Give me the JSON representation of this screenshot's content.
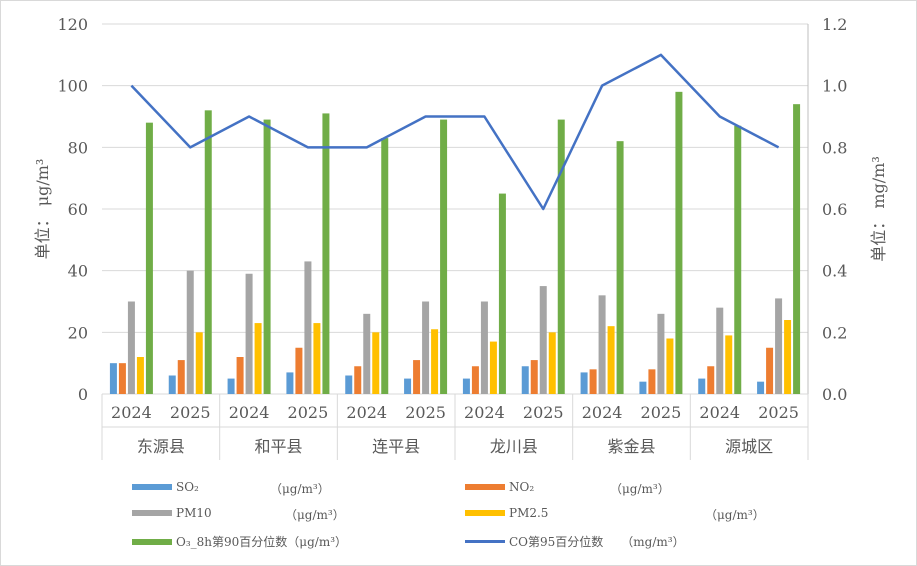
{
  "chart_data": {
    "type": "bar+line",
    "groups": [
      "东源县",
      "和平县",
      "连平县",
      "龙川县",
      "紫金县",
      "源城区"
    ],
    "years": [
      "2024",
      "2025"
    ],
    "ylabel": "单位： μg/m³",
    "y2label": "单位： mg/m³",
    "ylim": [
      0,
      120
    ],
    "yticks": [
      "0",
      "20",
      "40",
      "60",
      "80",
      "100",
      "120"
    ],
    "y2lim": [
      0,
      1.2
    ],
    "y2ticks": [
      "0.0",
      "0.2",
      "0.4",
      "0.6",
      "0.8",
      "1.0",
      "1.2"
    ],
    "grid": true,
    "legend_position": "bottom",
    "series": [
      {
        "name": "SO₂",
        "unit": "（μg/m³）",
        "type": "bar",
        "color": "#5b9bd5",
        "values": [
          10,
          6,
          5,
          7,
          6,
          5,
          5,
          9,
          7,
          4,
          5,
          4
        ]
      },
      {
        "name": "NO₂",
        "unit": "（μg/m³）",
        "type": "bar",
        "color": "#ed7d31",
        "values": [
          10,
          11,
          12,
          15,
          9,
          11,
          9,
          11,
          8,
          8,
          9,
          15
        ]
      },
      {
        "name": "PM10",
        "unit": "（μg/m³）",
        "type": "bar",
        "color": "#a5a5a5",
        "values": [
          30,
          40,
          39,
          43,
          26,
          30,
          30,
          35,
          32,
          26,
          28,
          31
        ]
      },
      {
        "name": "PM2.5",
        "unit": "（μg/m³）",
        "type": "bar",
        "color": "#ffc000",
        "values": [
          12,
          20,
          23,
          23,
          20,
          21,
          17,
          20,
          22,
          18,
          19,
          24
        ]
      },
      {
        "name": "O₃_8h第90百分位数",
        "unit": "（μg/m³）",
        "type": "bar",
        "color": "#70ad47",
        "values": [
          88,
          92,
          89,
          91,
          83,
          89,
          65,
          89,
          82,
          98,
          87,
          94
        ]
      },
      {
        "name": "CO第95百分位数",
        "unit": "（mg/m³）",
        "type": "line",
        "axis": "right",
        "color": "#4472c4",
        "values": [
          1.0,
          0.8,
          0.9,
          0.8,
          0.8,
          0.9,
          0.9,
          0.6,
          1.0,
          1.1,
          0.9,
          0.8
        ]
      }
    ]
  }
}
